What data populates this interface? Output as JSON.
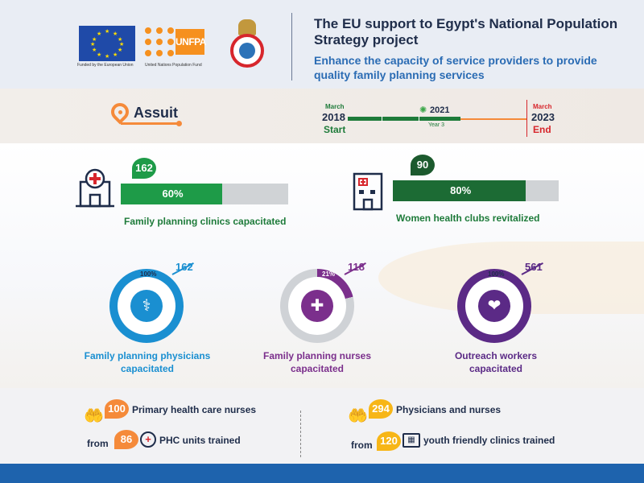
{
  "header": {
    "title": "The EU support to Egypt's National Population Strategy project",
    "subtitle": "Enhance the capacity of service providers to provide quality family planning services",
    "logos": {
      "eu_caption": "Funded by the European Union",
      "unfpa_text": "UNFPA",
      "unfpa_caption": "United Nations Population Fund"
    }
  },
  "location": {
    "name": "Assuit",
    "icon": "location-pin-icon"
  },
  "timeline": {
    "start": {
      "month": "March",
      "year": "2018",
      "label": "Start"
    },
    "current": {
      "year": "2021",
      "label": "Year 3",
      "icon": "gear-icon"
    },
    "end": {
      "month": "March",
      "year": "2023",
      "label": "End"
    },
    "progress": 0.63,
    "colors": {
      "done": "#1e7b3a",
      "remaining": "#f58a3a",
      "end": "#d7262c"
    }
  },
  "progress_bars": [
    {
      "count": "162",
      "percent_label": "60%",
      "percent": 60,
      "label": "Family planning clinics capacitated",
      "color": "#1e9b48",
      "badge_color": "#1e9b48",
      "icon": "clinic-icon"
    },
    {
      "count": "90",
      "percent_label": "80%",
      "percent": 80,
      "label": "Women health clubs revitalized",
      "color": "#1c6b34",
      "badge_color": "#1c5a2e",
      "icon": "hospital-building-icon"
    }
  ],
  "rings": [
    {
      "percent_label": "100%",
      "percent": 100,
      "count": "162",
      "label_line1": "Family planning physicians",
      "label_line2": "capacitated",
      "color": "#1a8fd1",
      "icon": "stethoscope-icon",
      "icon_glyph": "⚕"
    },
    {
      "percent_label": "21%",
      "percent": 21,
      "count": "118",
      "label_line1": "Family planning nurses",
      "label_line2": "capacitated",
      "color": "#7b2f8c",
      "icon": "nurse-icon",
      "icon_glyph": "✚"
    },
    {
      "percent_label": "100%",
      "percent": 100,
      "count": "561",
      "label_line1": "Outreach workers",
      "label_line2": "capacitated",
      "color": "#5b2a86",
      "icon": "care-hands-icon",
      "icon_glyph": "❤"
    }
  ],
  "bottom_stats": {
    "left": {
      "top_value": "100",
      "top_text": "Primary health care nurses",
      "from_label": "from",
      "bottom_value": "86",
      "bottom_text": "PHC units trained",
      "top_color": "#f58a3a",
      "bottom_color": "#f58a3a"
    },
    "right": {
      "top_value": "294",
      "top_text": "Physicians and nurses",
      "from_label": "from",
      "bottom_value": "120",
      "bottom_text": "youth friendly clinics trained",
      "top_color": "#f7b617",
      "bottom_color": "#f7b617"
    }
  }
}
